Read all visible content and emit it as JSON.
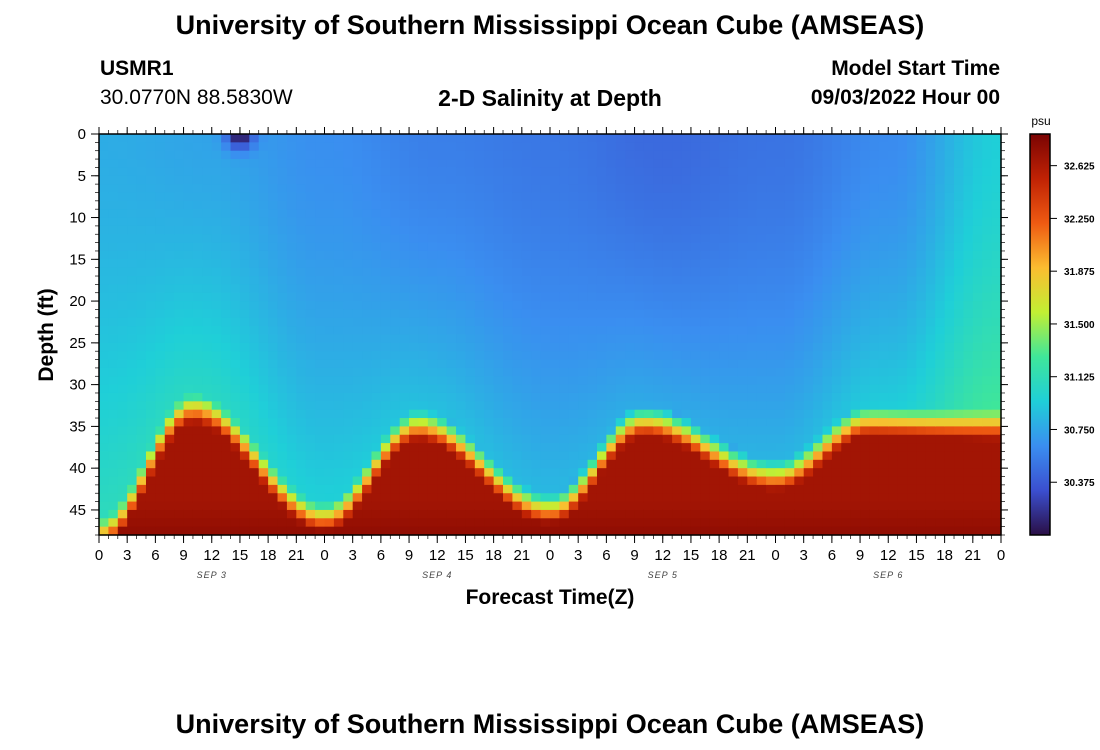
{
  "header": {
    "title": "University of Southern Mississippi Ocean Cube (AMSEAS)",
    "station": "USMR1",
    "coords": "30.0770N  88.5830W",
    "plot_title": "2-D Salinity at Depth",
    "start_label": "Model Start Time",
    "start_time": "09/03/2022 Hour 00",
    "footer_title": "University of Southern Mississippi Ocean Cube (AMSEAS)"
  },
  "colors": {
    "scale": [
      "#2a0f45",
      "#3b4fd0",
      "#3a8ef0",
      "#1fcfd8",
      "#3fe69a",
      "#c2ef33",
      "#fbbd30",
      "#ef5a12",
      "#c02204",
      "#7a0403"
    ]
  },
  "chart_data": {
    "type": "heatmap",
    "title": "2-D Salinity at Depth",
    "xlabel": "Forecast Time(Z)",
    "ylabel": "Depth (ft)",
    "x_ticks": [
      "0",
      "3",
      "6",
      "9",
      "12",
      "15",
      "18",
      "21",
      "0",
      "3",
      "6",
      "9",
      "12",
      "15",
      "18",
      "21",
      "0",
      "3",
      "6",
      "9",
      "12",
      "15",
      "18",
      "21",
      "0",
      "3",
      "6",
      "9",
      "12",
      "15",
      "18",
      "21",
      "0"
    ],
    "x_range_hours": [
      0,
      96
    ],
    "date_labels": [
      {
        "label": "SEP 3",
        "hour": 12
      },
      {
        "label": "SEP 4",
        "hour": 36
      },
      {
        "label": "SEP 5",
        "hour": 60
      },
      {
        "label": "SEP 6",
        "hour": 84
      }
    ],
    "y_ticks": [
      0,
      5,
      10,
      15,
      20,
      25,
      30,
      35,
      40,
      45
    ],
    "ylim": [
      48,
      0
    ],
    "colorbar": {
      "unit": "psu",
      "range": [
        30.0,
        32.85
      ],
      "ticks": [
        "32.625",
        "32.250",
        "31.875",
        "31.500",
        "31.125",
        "30.750",
        "30.375"
      ],
      "tick_values": [
        32.625,
        32.25,
        31.875,
        31.5,
        31.125,
        30.75,
        30.375
      ]
    },
    "surface_salinity": {
      "hours": [
        0,
        12,
        24,
        36,
        48,
        60,
        72,
        84,
        96
      ],
      "psu": [
        30.78,
        30.74,
        30.64,
        30.56,
        30.52,
        30.45,
        30.5,
        30.62,
        30.95
      ]
    },
    "halocline_top_depth": {
      "hours": [
        0,
        10,
        24,
        34,
        48,
        58,
        72,
        82,
        96
      ],
      "ft": [
        46,
        31,
        44,
        33,
        43,
        32.5,
        39,
        32.5,
        33
      ]
    },
    "deep_salinity_max": 32.75,
    "plume_min": {
      "hour": 15,
      "depth": 0,
      "psu": 30.0
    }
  }
}
